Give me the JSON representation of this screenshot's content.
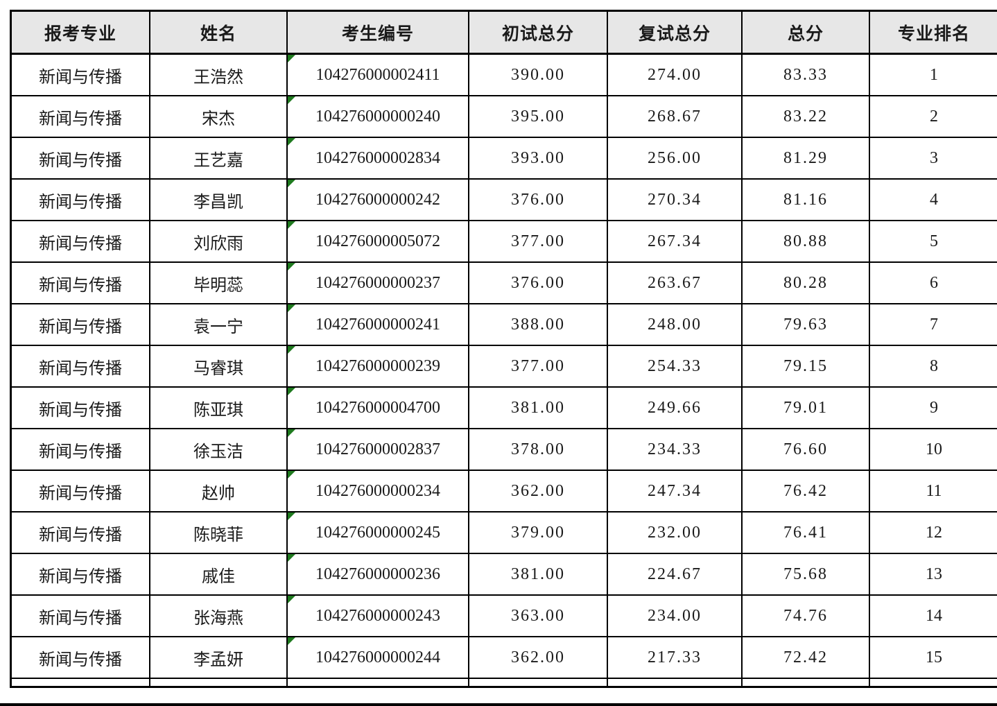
{
  "colors": {
    "header_bg": "#e7e7e7",
    "border": "#000000",
    "flag_green": "#1f7a1f",
    "page_bg": "#ffffff"
  },
  "icons": {
    "candidate_no_corner_flag": "green-triangle-flag"
  },
  "table": {
    "columns": [
      {
        "id": "major",
        "label": "报考专业"
      },
      {
        "id": "name",
        "label": "姓名"
      },
      {
        "id": "candidate_no",
        "label": "考生编号"
      },
      {
        "id": "initial_score",
        "label": "初试总分"
      },
      {
        "id": "retest_score",
        "label": "复试总分"
      },
      {
        "id": "total_score",
        "label": "总分"
      },
      {
        "id": "rank",
        "label": "专业排名"
      }
    ],
    "rows": [
      {
        "major": "新闻与传播",
        "name": "王浩然",
        "candidate_no": "104276000002411",
        "initial_score": "390.00",
        "retest_score": "274.00",
        "total_score": "83.33",
        "rank": "1"
      },
      {
        "major": "新闻与传播",
        "name": "宋杰",
        "candidate_no": "104276000000240",
        "initial_score": "395.00",
        "retest_score": "268.67",
        "total_score": "83.22",
        "rank": "2"
      },
      {
        "major": "新闻与传播",
        "name": "王艺嘉",
        "candidate_no": "104276000002834",
        "initial_score": "393.00",
        "retest_score": "256.00",
        "total_score": "81.29",
        "rank": "3"
      },
      {
        "major": "新闻与传播",
        "name": "李昌凯",
        "candidate_no": "104276000000242",
        "initial_score": "376.00",
        "retest_score": "270.34",
        "total_score": "81.16",
        "rank": "4"
      },
      {
        "major": "新闻与传播",
        "name": "刘欣雨",
        "candidate_no": "104276000005072",
        "initial_score": "377.00",
        "retest_score": "267.34",
        "total_score": "80.88",
        "rank": "5"
      },
      {
        "major": "新闻与传播",
        "name": "毕明蕊",
        "candidate_no": "104276000000237",
        "initial_score": "376.00",
        "retest_score": "263.67",
        "total_score": "80.28",
        "rank": "6"
      },
      {
        "major": "新闻与传播",
        "name": "袁一宁",
        "candidate_no": "104276000000241",
        "initial_score": "388.00",
        "retest_score": "248.00",
        "total_score": "79.63",
        "rank": "7"
      },
      {
        "major": "新闻与传播",
        "name": "马睿琪",
        "candidate_no": "104276000000239",
        "initial_score": "377.00",
        "retest_score": "254.33",
        "total_score": "79.15",
        "rank": "8"
      },
      {
        "major": "新闻与传播",
        "name": "陈亚琪",
        "candidate_no": "104276000004700",
        "initial_score": "381.00",
        "retest_score": "249.66",
        "total_score": "79.01",
        "rank": "9"
      },
      {
        "major": "新闻与传播",
        "name": "徐玉洁",
        "candidate_no": "104276000002837",
        "initial_score": "378.00",
        "retest_score": "234.33",
        "total_score": "76.60",
        "rank": "10"
      },
      {
        "major": "新闻与传播",
        "name": "赵帅",
        "candidate_no": "104276000000234",
        "initial_score": "362.00",
        "retest_score": "247.34",
        "total_score": "76.42",
        "rank": "11"
      },
      {
        "major": "新闻与传播",
        "name": "陈晓菲",
        "candidate_no": "104276000000245",
        "initial_score": "379.00",
        "retest_score": "232.00",
        "total_score": "76.41",
        "rank": "12"
      },
      {
        "major": "新闻与传播",
        "name": "戚佳",
        "candidate_no": "104276000000236",
        "initial_score": "381.00",
        "retest_score": "224.67",
        "total_score": "75.68",
        "rank": "13"
      },
      {
        "major": "新闻与传播",
        "name": "张海燕",
        "candidate_no": "104276000000243",
        "initial_score": "363.00",
        "retest_score": "234.00",
        "total_score": "74.76",
        "rank": "14"
      },
      {
        "major": "新闻与传播",
        "name": "李孟妍",
        "candidate_no": "104276000000244",
        "initial_score": "362.00",
        "retest_score": "217.33",
        "total_score": "72.42",
        "rank": "15"
      }
    ]
  }
}
